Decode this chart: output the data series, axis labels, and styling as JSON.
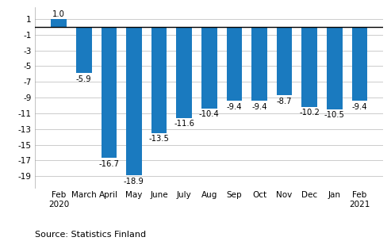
{
  "categories": [
    "Feb\n2020",
    "March",
    "April",
    "May",
    "June",
    "July",
    "Aug",
    "Sep",
    "Oct",
    "Nov",
    "Dec",
    "Jan",
    "Feb\n2021"
  ],
  "values": [
    1.0,
    -5.9,
    -16.7,
    -18.9,
    -13.5,
    -11.6,
    -10.4,
    -9.4,
    -9.4,
    -8.7,
    -10.2,
    -10.5,
    -9.4
  ],
  "bar_color": "#1a7abf",
  "ylim": [
    -20.5,
    2.5
  ],
  "yticks": [
    1,
    -1,
    -3,
    -5,
    -7,
    -9,
    -11,
    -13,
    -15,
    -17,
    -19
  ],
  "source_text": "Source: Statistics Finland",
  "background_color": "#ffffff",
  "grid_color": "#cccccc",
  "label_fontsize": 7.2,
  "axis_fontsize": 7.5,
  "source_fontsize": 8.0
}
